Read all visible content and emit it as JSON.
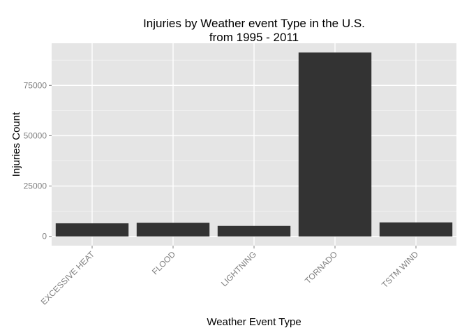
{
  "chart_data": {
    "type": "bar",
    "title": "Injuries by Weather event Type in the U.S.",
    "subtitle": "from 1995 - 2011",
    "xlabel": "Weather Event Type",
    "ylabel": "Injuries Count",
    "categories": [
      "EXCESSIVE HEAT",
      "FLOOD",
      "LIGHTNING",
      "TORNADO",
      "TSTM WIND"
    ],
    "values": [
      6500,
      6790,
      5200,
      91300,
      6960
    ],
    "ylim": [
      -4600,
      95900
    ],
    "yticks": [
      0,
      25000,
      50000,
      75000
    ],
    "ytick_labels": [
      "0",
      "25000",
      "50000",
      "75000"
    ],
    "grid": true,
    "legend": "none",
    "colors": {
      "panel": "#e5e5e5",
      "grid_major": "#ffffff",
      "grid_minor": "#f2f2f2",
      "bar": "#333333",
      "tick_text": "#7f7f7f"
    }
  }
}
